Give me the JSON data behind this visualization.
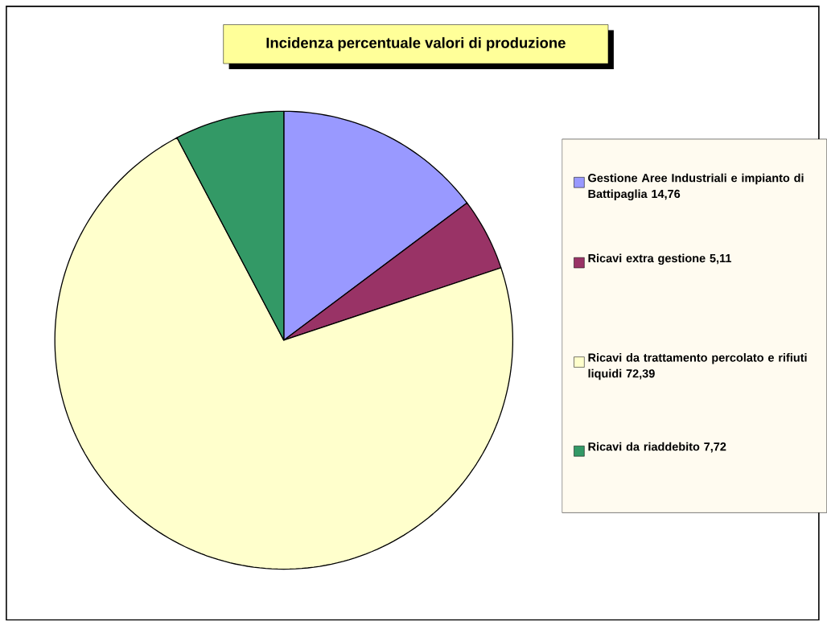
{
  "chart_data": {
    "type": "pie",
    "title": "Incidenza percentuale valori di produzione",
    "categories": [
      "Gestione Aree Industriali e impianto di Battipaglia 14,76",
      "Ricavi extra gestione 5,11",
      "Ricavi da trattamento percolato e rifiuti liquidi 72,39",
      "Ricavi da riaddebito 7,72"
    ],
    "values": [
      14.76,
      5.11,
      72.39,
      7.72
    ],
    "colors": [
      "#9999ff",
      "#993366",
      "#ffffcc",
      "#339966"
    ],
    "legend": "right"
  }
}
